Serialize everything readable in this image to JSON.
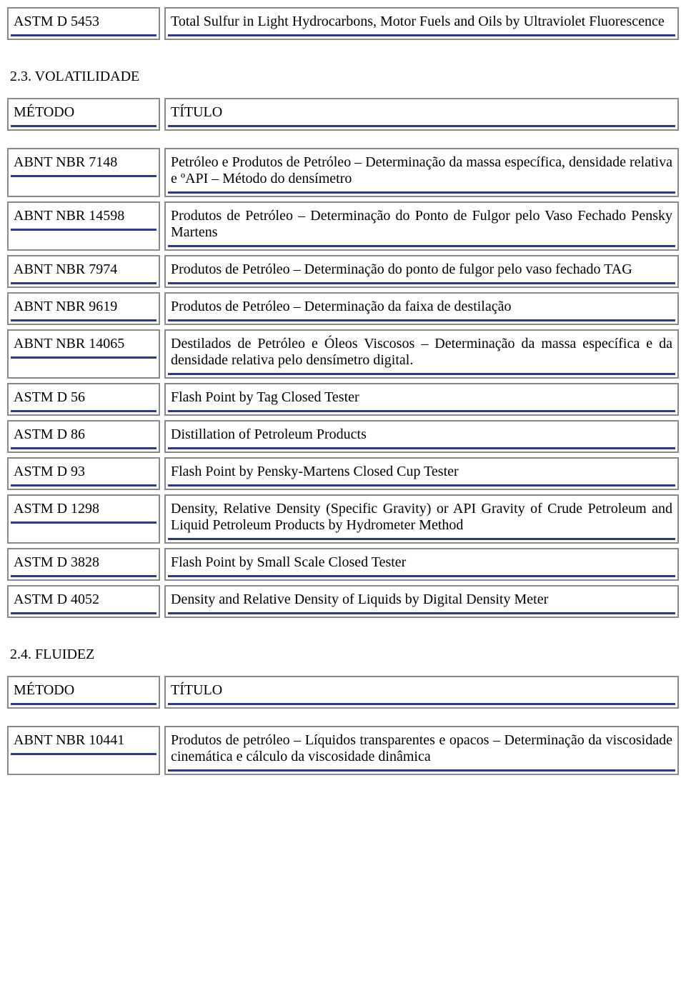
{
  "section1": {
    "rows": [
      {
        "method": "ASTM D 5453",
        "title": "Total Sulfur in Light Hydrocarbons, Motor Fuels and Oils by Ultraviolet Fluorescence"
      }
    ]
  },
  "section2": {
    "heading": "2.3. VOLATILIDADE",
    "header": {
      "left": "MÉTODO",
      "right": "TÍTULO"
    },
    "rows": [
      {
        "method": "ABNT NBR 7148",
        "title": "Petróleo e Produtos de Petróleo – Determinação da massa específica, densidade relativa e ºAPI – Método do densímetro"
      },
      {
        "method": "ABNT NBR 14598",
        "title": "Produtos de Petróleo – Determinação do Ponto de Fulgor pelo Vaso Fechado Pensky Martens"
      },
      {
        "method": "ABNT NBR 7974",
        "title": "Produtos de Petróleo – Determinação do ponto de fulgor pelo vaso fechado TAG"
      },
      {
        "method": "ABNT NBR 9619",
        "title": "Produtos de Petróleo – Determinação da faixa de destilação"
      },
      {
        "method": "ABNT NBR 14065",
        "title": "Destilados de Petróleo e Óleos Viscosos – Determinação da massa específica e da densidade relativa pelo densímetro digital."
      },
      {
        "method": "ASTM D 56",
        "title": "Flash Point by Tag Closed Tester"
      },
      {
        "method": "ASTM D 86",
        "title": "Distillation of Petroleum Products"
      },
      {
        "method": "ASTM D 93",
        "title": "Flash Point by Pensky-Martens Closed Cup Tester"
      },
      {
        "method": "ASTM D 1298",
        "title": "Density, Relative Density (Specific Gravity) or API Gravity of Crude Petroleum and Liquid Petroleum Products by Hydrometer Method"
      },
      {
        "method": "ASTM D 3828",
        "title": "Flash Point by Small Scale Closed Tester"
      },
      {
        "method": "ASTM D 4052",
        "title": "Density and Relative Density of Liquids by Digital Density Meter"
      }
    ]
  },
  "section3": {
    "heading": "2.4. FLUIDEZ",
    "header": {
      "left": "MÉTODO",
      "right": "TÍTULO"
    },
    "rows": [
      {
        "method": "ABNT NBR 10441",
        "title": "Produtos de petróleo – Líquidos transparentes e opacos – Determinação da viscosidade cinemática e cálculo da viscosidade dinâmica"
      }
    ]
  }
}
